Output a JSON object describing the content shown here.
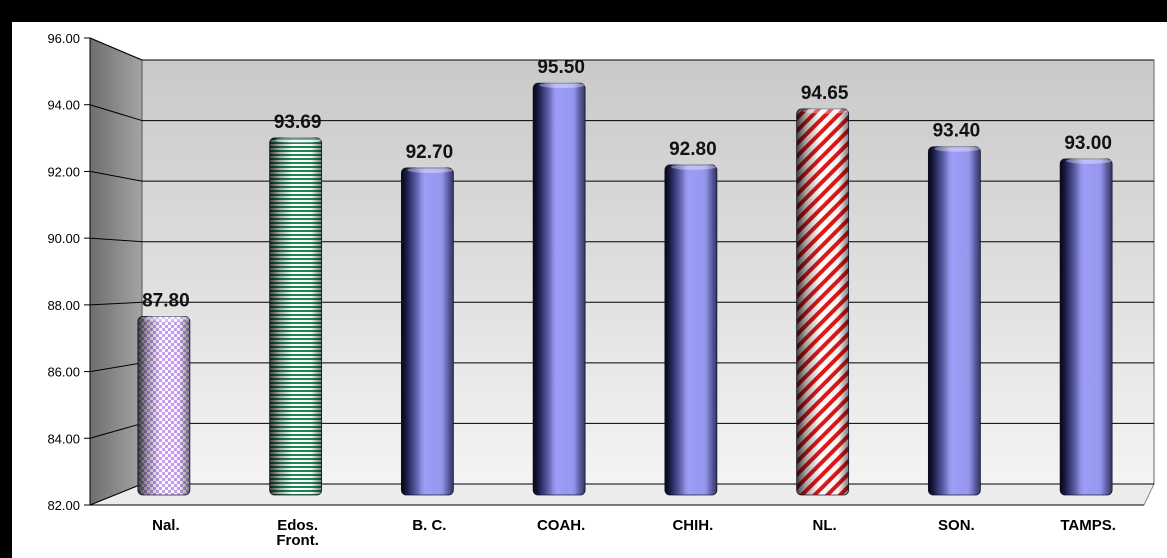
{
  "chart_data": {
    "type": "bar",
    "title": "",
    "xlabel": "",
    "ylabel": "",
    "ylim": [
      82,
      96
    ],
    "yticks": [
      "82.00",
      "84.00",
      "86.00",
      "88.00",
      "90.00",
      "92.00",
      "94.00",
      "96.00"
    ],
    "ytick_values": [
      82,
      84,
      86,
      88,
      90,
      92,
      94,
      96
    ],
    "grid": true,
    "legend": "none",
    "categories": [
      "Nal.",
      "Edos. Front.",
      "B. C.",
      "COAH.",
      "CHIH.",
      "NL.",
      "SON.",
      "TAMPS."
    ],
    "category_lines": [
      [
        "Nal."
      ],
      [
        "Edos.",
        "Front."
      ],
      [
        "B. C."
      ],
      [
        "COAH."
      ],
      [
        "CHIH."
      ],
      [
        "NL."
      ],
      [
        "SON."
      ],
      [
        "TAMPS."
      ]
    ],
    "values": [
      87.8,
      93.69,
      92.7,
      95.5,
      92.8,
      94.65,
      93.4,
      93.0
    ],
    "value_labels": [
      "87.80",
      "93.69",
      "92.70",
      "95.50",
      "92.80",
      "94.65",
      "93.40",
      "93.00"
    ],
    "bar_styles": [
      "checker",
      "hstripe",
      "solid",
      "solid",
      "solid",
      "diagonal",
      "solid",
      "solid"
    ],
    "colors": {
      "bar": "#9a9cf6",
      "bar_dark": "#22245e",
      "checker": "#c9a0f0",
      "stripe_green": "#1e8a55",
      "stripe_red": "#e01818",
      "back_wall": "#e2e2e2",
      "side_wall": "#8e8e8e",
      "floor": "#ececec",
      "grid": "#000000",
      "background": "#ffffff"
    }
  }
}
